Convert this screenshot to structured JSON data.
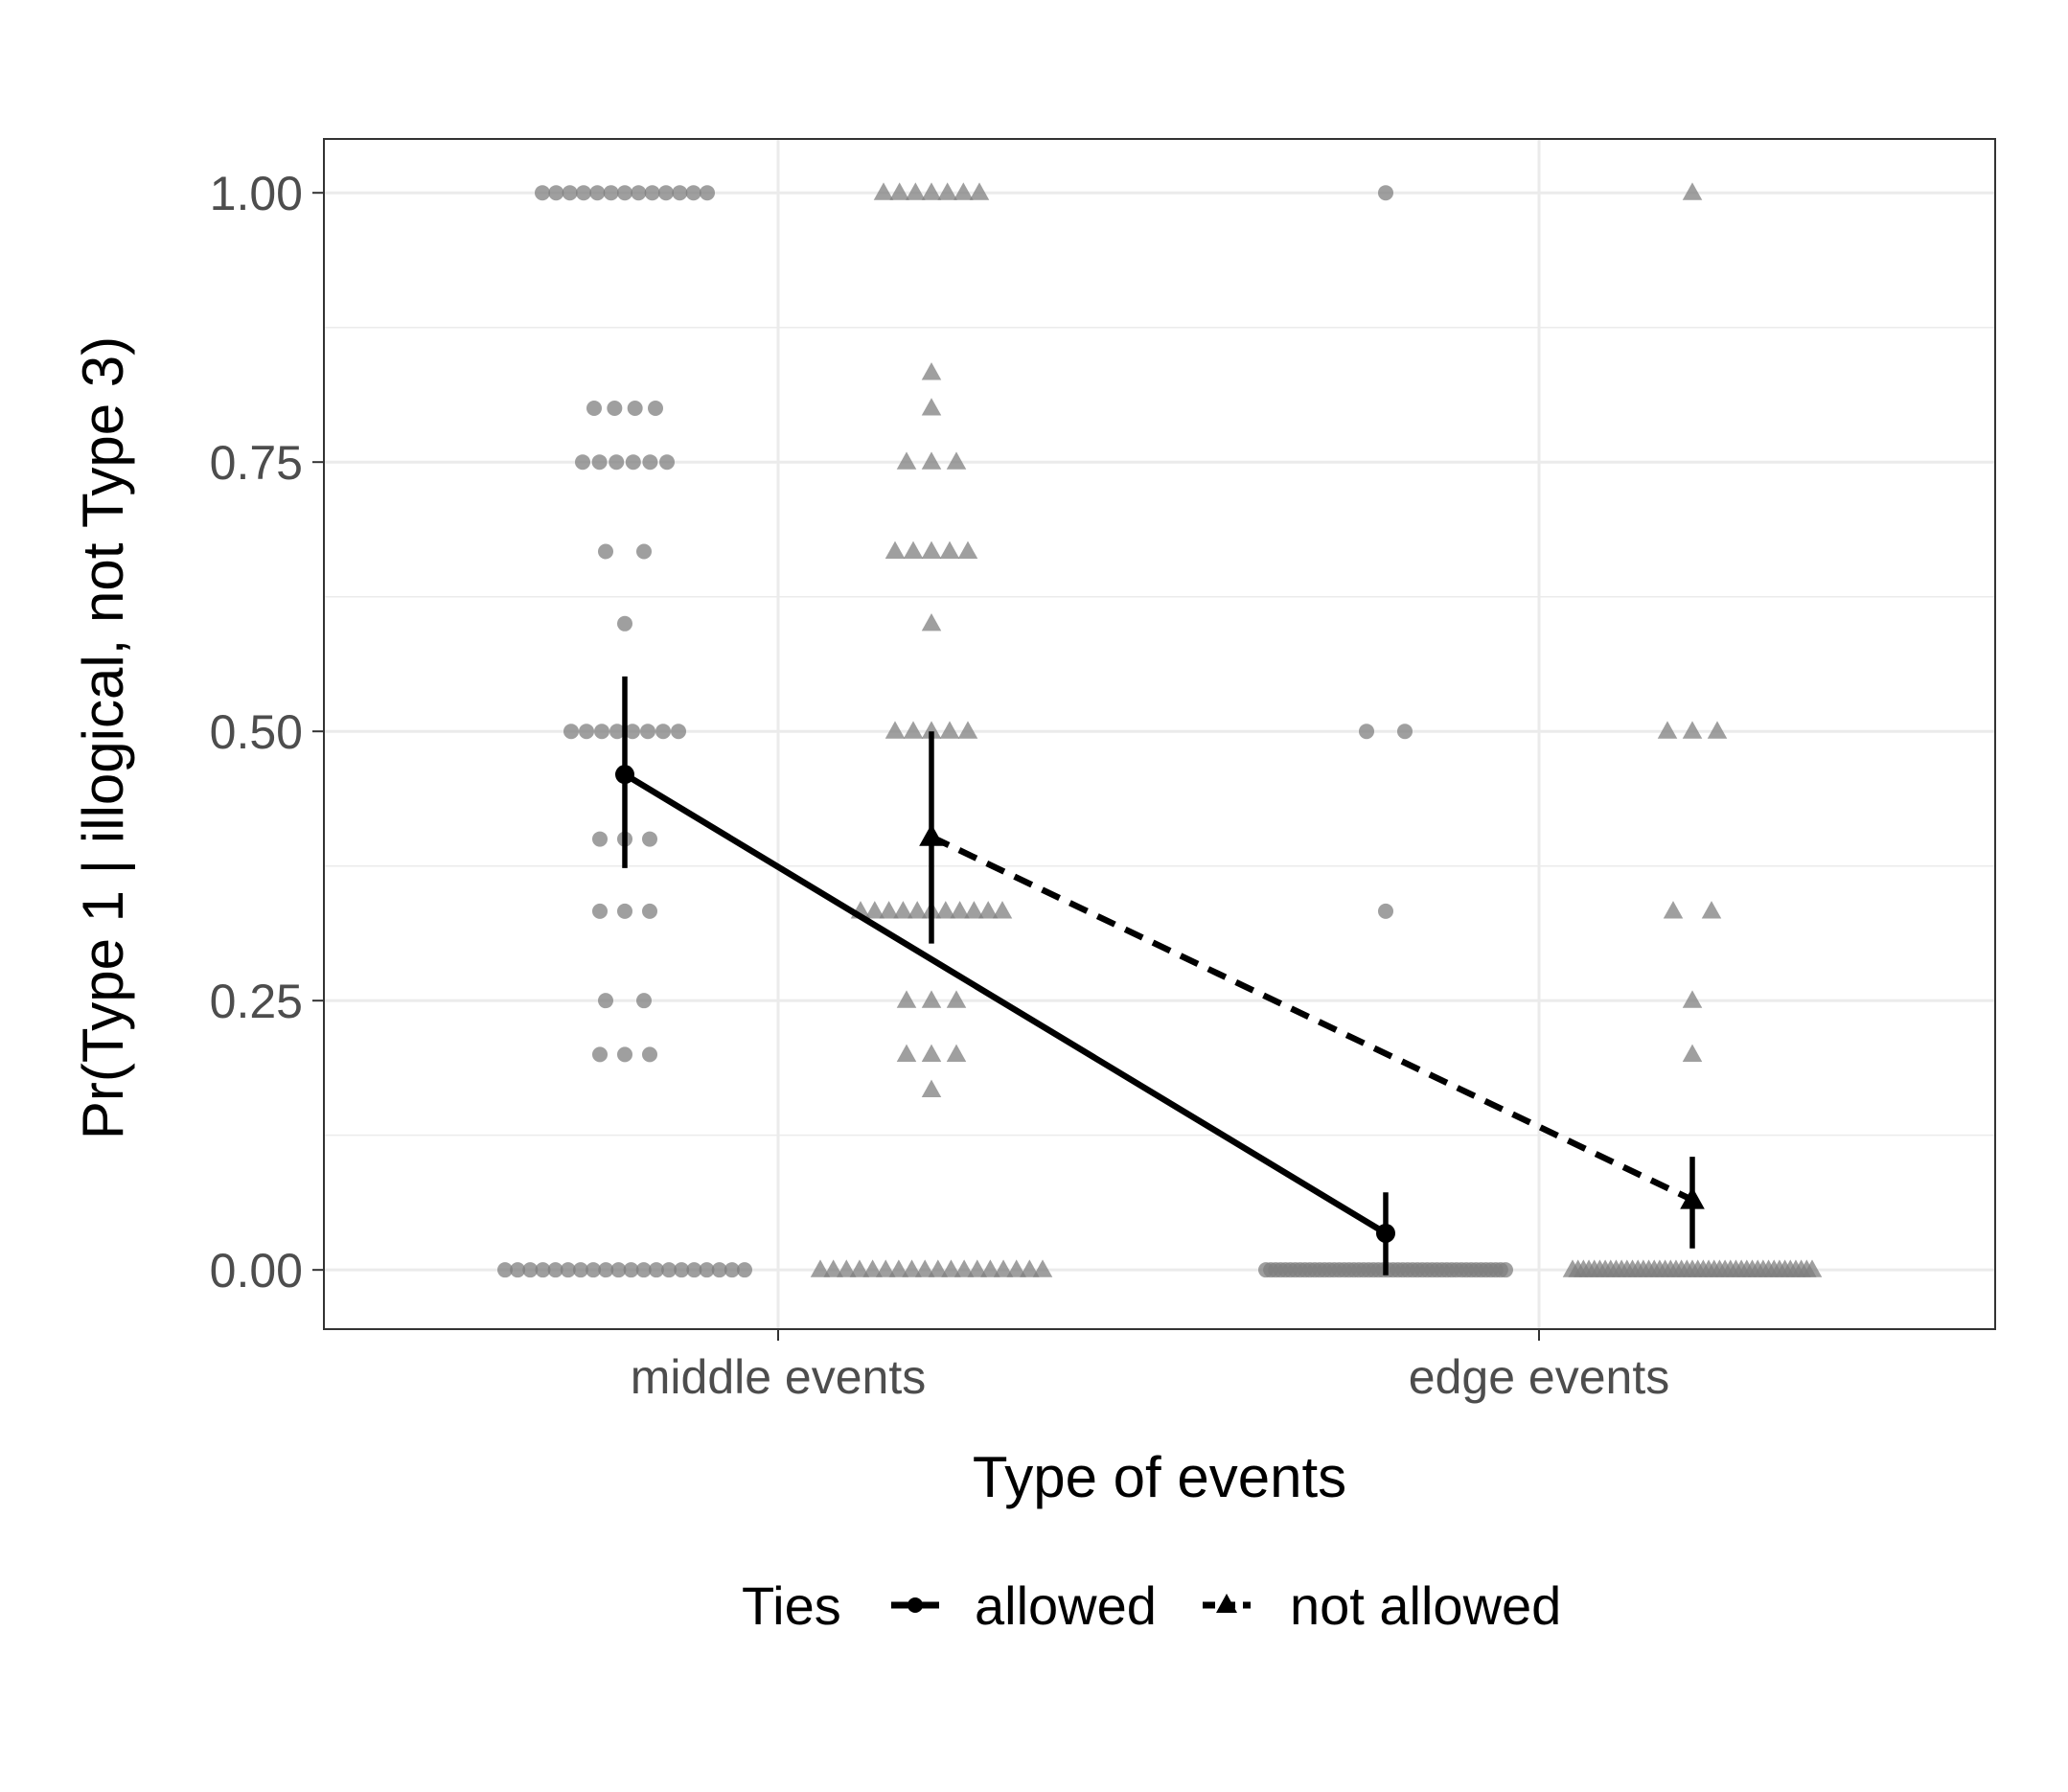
{
  "chart_data": {
    "type": "scatter",
    "xlabel": "Type of events",
    "ylabel": "Pr(Type 1 | illogical, not Type 3)",
    "categories": [
      "middle events",
      "edge events"
    ],
    "ylim": [
      -0.055,
      1.05
    ],
    "yticks": [
      {
        "value": 0.0,
        "label": "0.00"
      },
      {
        "value": 0.25,
        "label": "0.25"
      },
      {
        "value": 0.5,
        "label": "0.50"
      },
      {
        "value": 0.75,
        "label": "0.75"
      },
      {
        "value": 1.0,
        "label": "1.00"
      }
    ],
    "grid": true,
    "legend": {
      "title": "Ties",
      "position": "bottom",
      "entries": [
        {
          "label": "allowed",
          "shape": "circle",
          "linetype": "solid"
        },
        {
          "label": "not allowed",
          "shape": "triangle",
          "linetype": "dashed"
        }
      ]
    },
    "colors": {
      "points": "#7f7f7f",
      "summary": "#000000",
      "grid": "#ebebeb",
      "border": "#333333"
    },
    "series": [
      {
        "name": "allowed",
        "shape": "circle",
        "linetype": "solid",
        "summary": [
          {
            "category": "middle events",
            "mean": 0.46,
            "lower": 0.373,
            "upper": 0.551
          },
          {
            "category": "edge events",
            "mean": 0.034,
            "lower": -0.005,
            "upper": 0.072
          }
        ],
        "raw": [
          {
            "category": "middle events",
            "values": [
              {
                "y": 1.0,
                "count": 13
              },
              {
                "y": 0.8,
                "count": 4
              },
              {
                "y": 0.75,
                "count": 6
              },
              {
                "y": 0.667,
                "count": 2
              },
              {
                "y": 0.6,
                "count": 1
              },
              {
                "y": 0.5,
                "count": 8
              },
              {
                "y": 0.4,
                "count": 3
              },
              {
                "y": 0.333,
                "count": 3
              },
              {
                "y": 0.25,
                "count": 2
              },
              {
                "y": 0.2,
                "count": 3
              },
              {
                "y": 0.0,
                "count": 20
              }
            ]
          },
          {
            "category": "edge events",
            "values": [
              {
                "y": 1.0,
                "count": 1
              },
              {
                "y": 0.5,
                "count": 2
              },
              {
                "y": 0.333,
                "count": 1
              },
              {
                "y": 0.0,
                "count": 50
              }
            ]
          }
        ]
      },
      {
        "name": "not allowed",
        "shape": "triangle",
        "linetype": "dashed",
        "summary": [
          {
            "category": "middle events",
            "mean": 0.402,
            "lower": 0.303,
            "upper": 0.5
          },
          {
            "category": "edge events",
            "mean": 0.065,
            "lower": 0.02,
            "upper": 0.105
          }
        ],
        "raw": [
          {
            "category": "middle events",
            "values": [
              {
                "y": 1.0,
                "count": 7
              },
              {
                "y": 0.833,
                "count": 1
              },
              {
                "y": 0.8,
                "count": 1
              },
              {
                "y": 0.75,
                "count": 3
              },
              {
                "y": 0.667,
                "count": 5
              },
              {
                "y": 0.6,
                "count": 1
              },
              {
                "y": 0.5,
                "count": 5
              },
              {
                "y": 0.333,
                "count": 11
              },
              {
                "y": 0.25,
                "count": 3
              },
              {
                "y": 0.2,
                "count": 3
              },
              {
                "y": 0.167,
                "count": 1
              },
              {
                "y": 0.0,
                "count": 18
              }
            ]
          },
          {
            "category": "edge events",
            "values": [
              {
                "y": 1.0,
                "count": 1
              },
              {
                "y": 0.5,
                "count": 3
              },
              {
                "y": 0.333,
                "count": 2
              },
              {
                "y": 0.25,
                "count": 1
              },
              {
                "y": 0.2,
                "count": 1
              },
              {
                "y": 0.0,
                "count": 45
              }
            ]
          }
        ]
      }
    ]
  }
}
